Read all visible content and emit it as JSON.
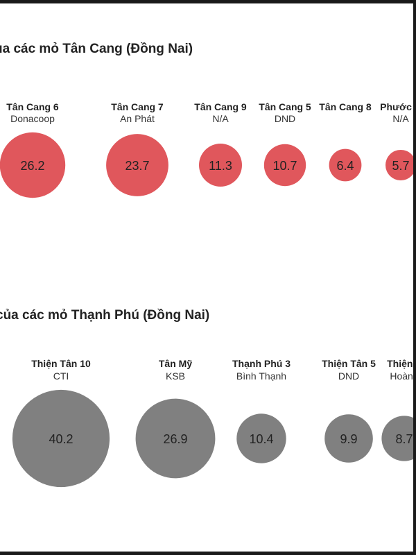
{
  "chart_data": [
    {
      "type": "bubble",
      "title": "ủa các mỏ Tân Cang (Đồng Nai)",
      "color": "#e0575c",
      "categories": [
        "Tân Cang 6",
        "Tân Cang 7",
        "Tân Cang 9",
        "Tân Cang 5",
        "Tân Cang 8",
        "Phước B"
      ],
      "owners": [
        "Donacoop",
        "An Phát",
        "N/A",
        "DND",
        "",
        "N/A"
      ],
      "values": [
        26.2,
        23.7,
        11.3,
        10.7,
        6.4,
        5.7
      ]
    },
    {
      "type": "bubble",
      "title": "của các mỏ Thạnh Phú (Đồng Nai)",
      "color": "#808080",
      "categories": [
        "Thiện Tân 10",
        "Tân Mỹ",
        "Thạnh Phú 3",
        "Thiện Tân 5",
        "Thiện T"
      ],
      "owners": [
        "CTI",
        "KSB",
        "Bình Thạnh",
        "DND",
        "Hoàng"
      ],
      "values": [
        40.2,
        26.9,
        10.4,
        9.9,
        8.7
      ]
    }
  ]
}
